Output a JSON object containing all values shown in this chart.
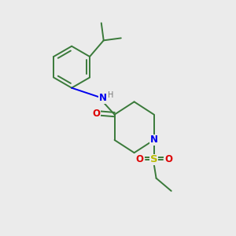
{
  "bg_color": "#ebebeb",
  "bond_color": "#3a7a3a",
  "N_color": "#0000ee",
  "O_color": "#dd0000",
  "S_color": "#bbbb00",
  "H_color": "#777777",
  "line_width": 1.4,
  "font_size": 8.5,
  "fig_size": [
    3.0,
    3.0
  ],
  "dpi": 100,
  "xlim": [
    0,
    10
  ],
  "ylim": [
    0,
    10
  ]
}
